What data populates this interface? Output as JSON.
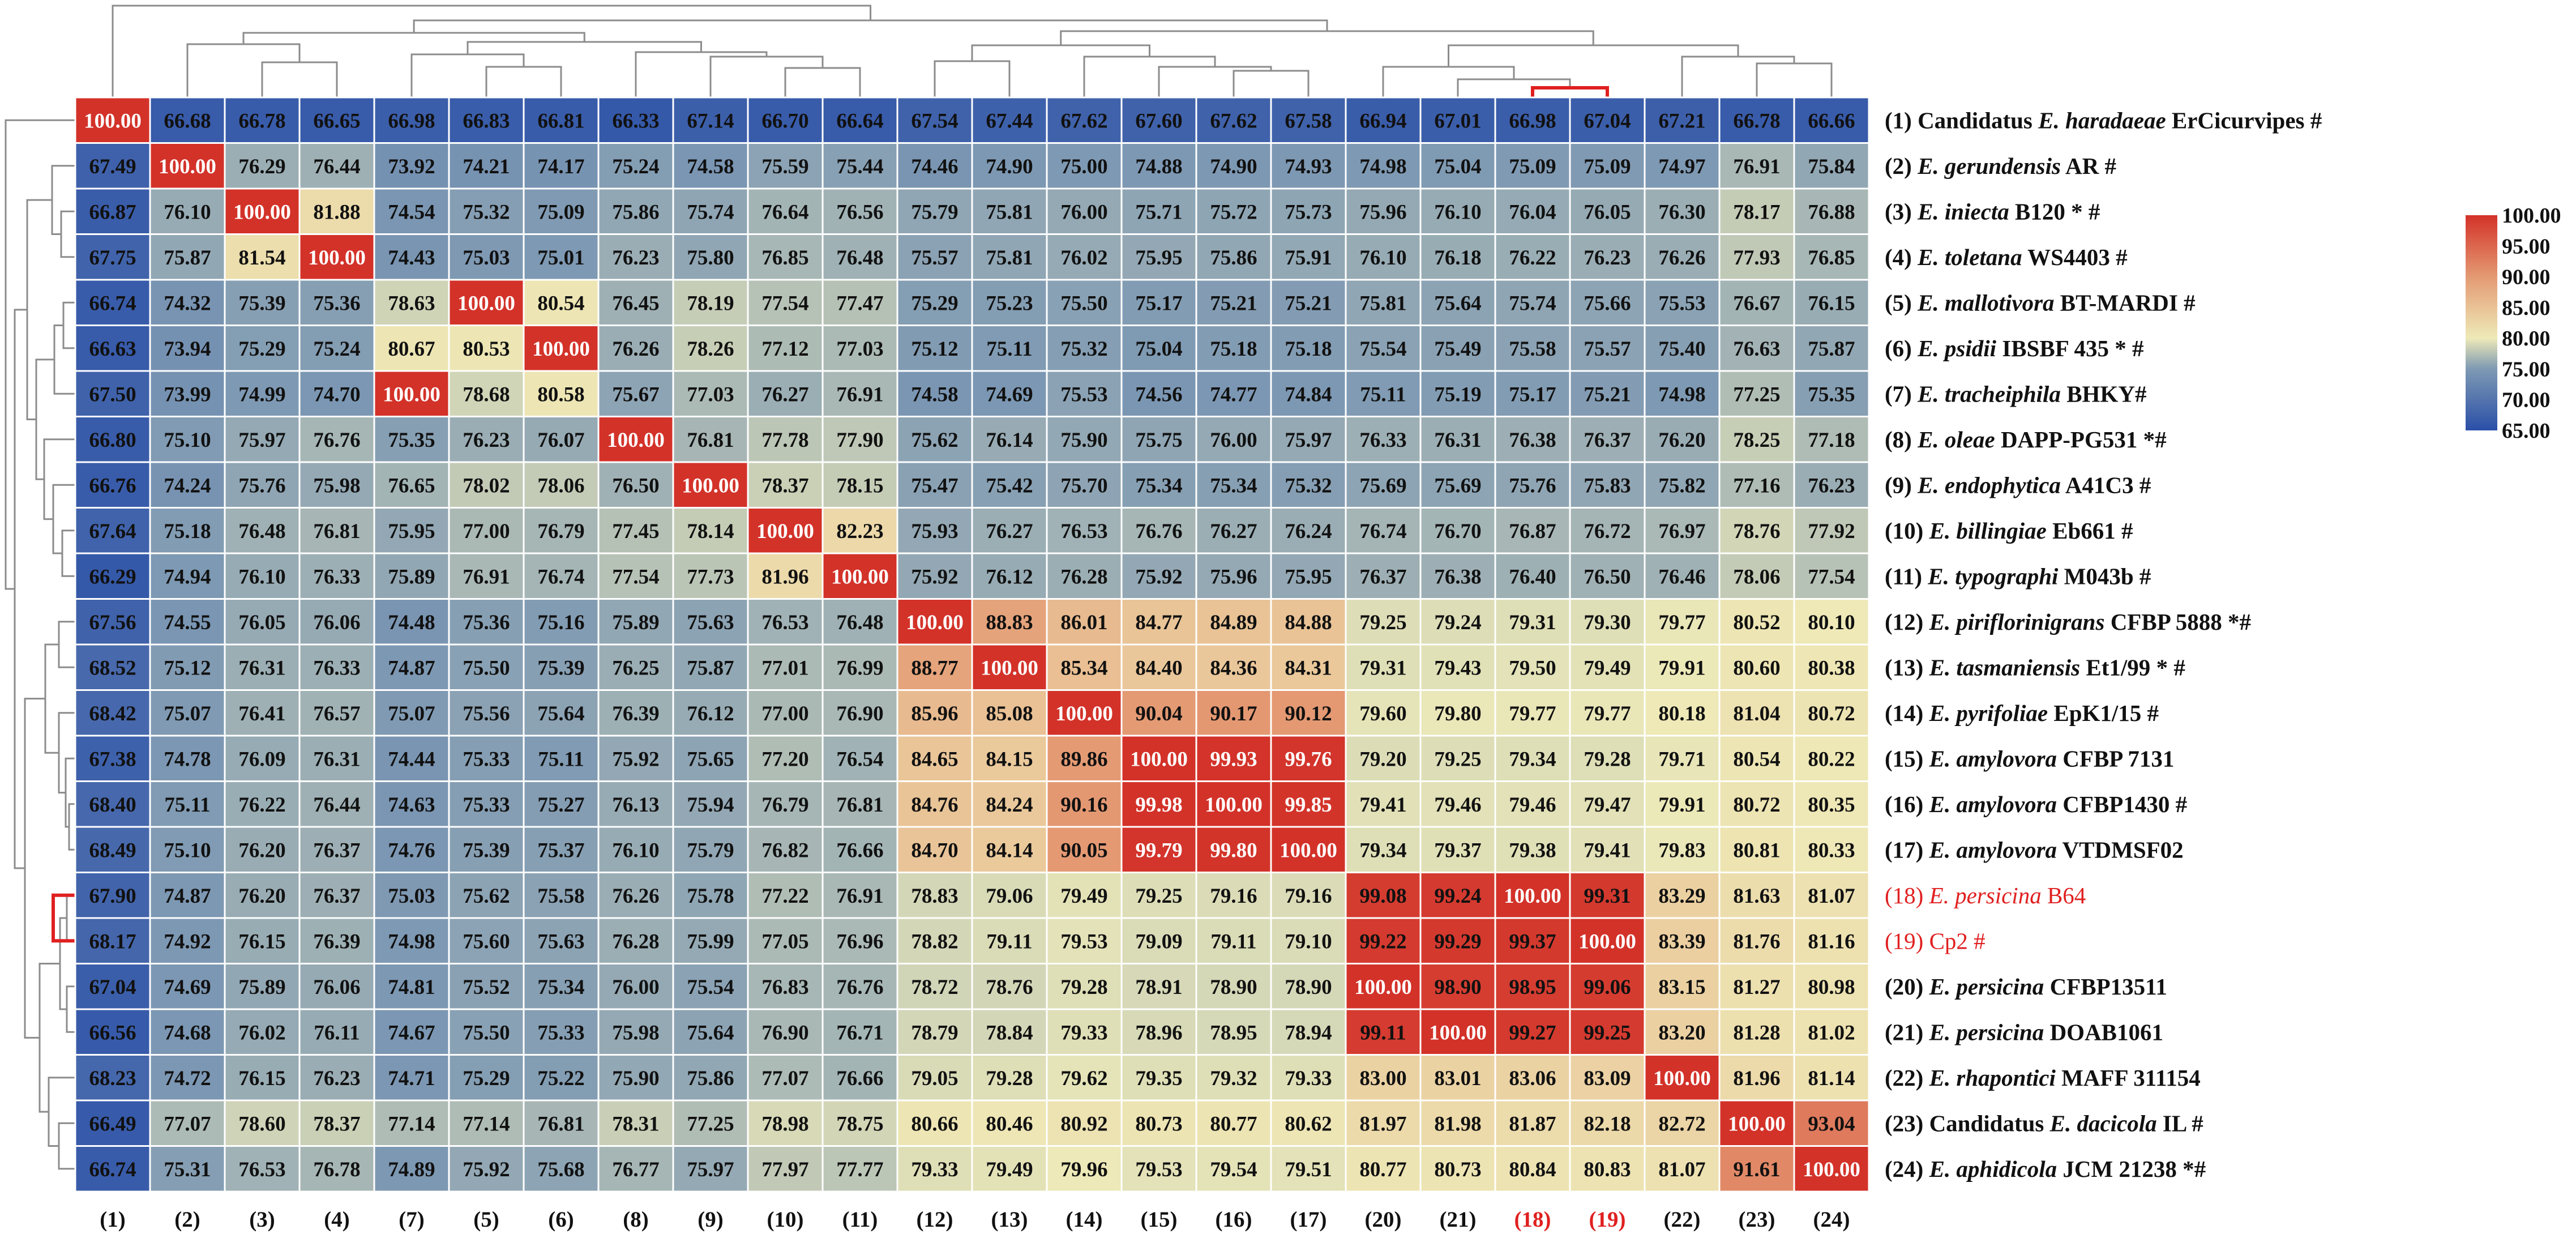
{
  "chart_data": {
    "type": "heatmap",
    "column_order": [
      1,
      2,
      3,
      4,
      7,
      5,
      6,
      8,
      9,
      10,
      11,
      12,
      13,
      14,
      15,
      16,
      17,
      20,
      21,
      18,
      19,
      22,
      23,
      24
    ],
    "col_labels": [
      "(1)",
      "(2)",
      "(3)",
      "(4)",
      "(7)",
      "(5)",
      "(6)",
      "(8)",
      "(9)",
      "(10)",
      "(11)",
      "(12)",
      "(13)",
      "(14)",
      "(15)",
      "(16)",
      "(17)",
      "(20)",
      "(21)",
      "(18)",
      "(19)",
      "(22)",
      "(23)",
      "(24)"
    ],
    "highlight_color": "#e02020",
    "highlight_columns": [
      "(18)",
      "(19)"
    ],
    "rows": [
      {
        "num": "(1)",
        "pre": "Candidatus ",
        "genus": "E. ",
        "species": "haradaeae",
        "strain": " ErCicurvipes",
        "mark": " #",
        "red": false
      },
      {
        "num": "(2)",
        "pre": "",
        "genus": "E. ",
        "species": "gerundensis",
        "strain": " AR",
        "mark": " #",
        "red": false
      },
      {
        "num": "(3)",
        "pre": "",
        "genus": "E. ",
        "species": "iniecta",
        "strain": " B120",
        "mark": " * #",
        "red": false
      },
      {
        "num": "(4)",
        "pre": "",
        "genus": "E. ",
        "species": "toletana",
        "strain": " WS4403",
        "mark": " #",
        "red": false
      },
      {
        "num": "(5)",
        "pre": "",
        "genus": "E. ",
        "species": "mallotivora",
        "strain": " BT-MARDI",
        "mark": " #",
        "red": false
      },
      {
        "num": "(6)",
        "pre": "",
        "genus": "E. ",
        "species": "psidii",
        "strain": " IBSBF 435",
        "mark": " * #",
        "red": false
      },
      {
        "num": "(7)",
        "pre": "",
        "genus": "E. ",
        "species": "tracheiphila",
        "strain": " BHKY",
        "mark": "#",
        "red": false
      },
      {
        "num": "(8)",
        "pre": "",
        "genus": "E. ",
        "species": "oleae",
        "strain": " DAPP-PG531",
        "mark": " *#",
        "red": false
      },
      {
        "num": "(9)",
        "pre": "",
        "genus": "E. ",
        "species": "endophytica",
        "strain": " A41C3",
        "mark": " #",
        "red": false
      },
      {
        "num": "(10)",
        "pre": "",
        "genus": "E. ",
        "species": "billingiae",
        "strain": " Eb661",
        "mark": " #",
        "red": false
      },
      {
        "num": "(11)",
        "pre": "",
        "genus": "E. ",
        "species": "typographi",
        "strain": " M043b",
        "mark": " #",
        "red": false
      },
      {
        "num": "(12)",
        "pre": "",
        "genus": "E. ",
        "species": "piriflorinigrans",
        "strain": " CFBP 5888",
        "mark": " *#",
        "red": false
      },
      {
        "num": "(13)",
        "pre": "",
        "genus": "E. ",
        "species": "tasmaniensis",
        "strain": " Et1/99",
        "mark": " * #",
        "red": false
      },
      {
        "num": "(14)",
        "pre": "",
        "genus": "E. ",
        "species": "pyrifoliae",
        "strain": " EpK1/15",
        "mark": " #",
        "red": false
      },
      {
        "num": "(15)",
        "pre": "",
        "genus": "E. ",
        "species": "amylovora",
        "strain": " CFBP 7131",
        "mark": "",
        "red": false
      },
      {
        "num": "(16)",
        "pre": "",
        "genus": "E. ",
        "species": "amylovora",
        "strain": " CFBP1430",
        "mark": " #",
        "red": false
      },
      {
        "num": "(17)",
        "pre": "",
        "genus": "E. ",
        "species": "amylovora",
        "strain": " VTDMSF02",
        "mark": "",
        "red": false
      },
      {
        "num": "(18)",
        "pre": "",
        "genus": "E. ",
        "species": "persicina",
        "strain": " B64",
        "mark": "",
        "red": true
      },
      {
        "num": "(19)",
        "pre": "",
        "genus": "",
        "species": "",
        "strain": "Cp2",
        "mark": " #",
        "red": true
      },
      {
        "num": "(20)",
        "pre": "",
        "genus": "E. ",
        "species": "persicina",
        "strain": " CFBP13511",
        "mark": "",
        "red": false
      },
      {
        "num": "(21)",
        "pre": "",
        "genus": "E. ",
        "species": "persicina",
        "strain": " DOAB1061",
        "mark": "",
        "red": false
      },
      {
        "num": "(22)",
        "pre": "",
        "genus": "E. ",
        "species": "rhapontici",
        "strain": " MAFF 311154",
        "mark": "",
        "red": false
      },
      {
        "num": "(23)",
        "pre": "Candidatus ",
        "genus": "E. ",
        "species": "dacicola",
        "strain": " IL",
        "mark": " #",
        "red": false
      },
      {
        "num": "(24)",
        "pre": "",
        "genus": "E. ",
        "species": "aphidicola",
        "strain": " JCM 21238",
        "mark": " *#",
        "red": false
      }
    ],
    "values": [
      [
        "100.00",
        "66.68",
        "66.78",
        "66.65",
        "66.98",
        "66.83",
        "66.81",
        "66.33",
        "67.14",
        "66.70",
        "66.64",
        "67.54",
        "67.44",
        "67.62",
        "67.60",
        "67.62",
        "67.58",
        "66.94",
        "67.01",
        "66.98",
        "67.04",
        "67.21",
        "66.78",
        "66.66"
      ],
      [
        "67.49",
        "100.00",
        "76.29",
        "76.44",
        "73.92",
        "74.21",
        "74.17",
        "75.24",
        "74.58",
        "75.59",
        "75.44",
        "74.46",
        "74.90",
        "75.00",
        "74.88",
        "74.90",
        "74.93",
        "74.98",
        "75.04",
        "75.09",
        "75.09",
        "74.97",
        "76.91",
        "75.84"
      ],
      [
        "66.87",
        "76.10",
        "100.00",
        "81.88",
        "74.54",
        "75.32",
        "75.09",
        "75.86",
        "75.74",
        "76.64",
        "76.56",
        "75.79",
        "75.81",
        "76.00",
        "75.71",
        "75.72",
        "75.73",
        "75.96",
        "76.10",
        "76.04",
        "76.05",
        "76.30",
        "78.17",
        "76.88"
      ],
      [
        "67.75",
        "75.87",
        "81.54",
        "100.00",
        "74.43",
        "75.03",
        "75.01",
        "76.23",
        "75.80",
        "76.85",
        "76.48",
        "75.57",
        "75.81",
        "76.02",
        "75.95",
        "75.86",
        "75.91",
        "76.10",
        "76.18",
        "76.22",
        "76.23",
        "76.26",
        "77.93",
        "76.85"
      ],
      [
        "66.74",
        "74.32",
        "75.39",
        "75.36",
        "78.63",
        "100.00",
        "80.54",
        "76.45",
        "78.19",
        "77.54",
        "77.47",
        "75.29",
        "75.23",
        "75.50",
        "75.17",
        "75.21",
        "75.21",
        "75.81",
        "75.64",
        "75.74",
        "75.66",
        "75.53",
        "76.67",
        "76.15"
      ],
      [
        "66.63",
        "73.94",
        "75.29",
        "75.24",
        "80.67",
        "80.53",
        "100.00",
        "76.26",
        "78.26",
        "77.12",
        "77.03",
        "75.12",
        "75.11",
        "75.32",
        "75.04",
        "75.18",
        "75.18",
        "75.54",
        "75.49",
        "75.58",
        "75.57",
        "75.40",
        "76.63",
        "75.87"
      ],
      [
        "67.50",
        "73.99",
        "74.99",
        "74.70",
        "100.00",
        "78.68",
        "80.58",
        "75.67",
        "77.03",
        "76.27",
        "76.91",
        "74.58",
        "74.69",
        "75.53",
        "74.56",
        "74.77",
        "74.84",
        "75.11",
        "75.19",
        "75.17",
        "75.21",
        "74.98",
        "77.25",
        "75.35"
      ],
      [
        "66.80",
        "75.10",
        "75.97",
        "76.76",
        "75.35",
        "76.23",
        "76.07",
        "100.00",
        "76.81",
        "77.78",
        "77.90",
        "75.62",
        "76.14",
        "75.90",
        "75.75",
        "76.00",
        "75.97",
        "76.33",
        "76.31",
        "76.38",
        "76.37",
        "76.20",
        "78.25",
        "77.18"
      ],
      [
        "66.76",
        "74.24",
        "75.76",
        "75.98",
        "76.65",
        "78.02",
        "78.06",
        "76.50",
        "100.00",
        "78.37",
        "78.15",
        "75.47",
        "75.42",
        "75.70",
        "75.34",
        "75.34",
        "75.32",
        "75.69",
        "75.69",
        "75.76",
        "75.83",
        "75.82",
        "77.16",
        "76.23"
      ],
      [
        "67.64",
        "75.18",
        "76.48",
        "76.81",
        "75.95",
        "77.00",
        "76.79",
        "77.45",
        "78.14",
        "100.00",
        "82.23",
        "75.93",
        "76.27",
        "76.53",
        "76.76",
        "76.27",
        "76.24",
        "76.74",
        "76.70",
        "76.87",
        "76.72",
        "76.97",
        "78.76",
        "77.92"
      ],
      [
        "66.29",
        "74.94",
        "76.10",
        "76.33",
        "75.89",
        "76.91",
        "76.74",
        "77.54",
        "77.73",
        "81.96",
        "100.00",
        "75.92",
        "76.12",
        "76.28",
        "75.92",
        "75.96",
        "75.95",
        "76.37",
        "76.38",
        "76.40",
        "76.50",
        "76.46",
        "78.06",
        "77.54"
      ],
      [
        "67.56",
        "74.55",
        "76.05",
        "76.06",
        "74.48",
        "75.36",
        "75.16",
        "75.89",
        "75.63",
        "76.53",
        "76.48",
        "100.00",
        "88.83",
        "86.01",
        "84.77",
        "84.89",
        "84.88",
        "79.25",
        "79.24",
        "79.31",
        "79.30",
        "79.77",
        "80.52",
        "80.10"
      ],
      [
        "68.52",
        "75.12",
        "76.31",
        "76.33",
        "74.87",
        "75.50",
        "75.39",
        "76.25",
        "75.87",
        "77.01",
        "76.99",
        "88.77",
        "100.00",
        "85.34",
        "84.40",
        "84.36",
        "84.31",
        "79.31",
        "79.43",
        "79.50",
        "79.49",
        "79.91",
        "80.60",
        "80.38"
      ],
      [
        "68.42",
        "75.07",
        "76.41",
        "76.57",
        "75.07",
        "75.56",
        "75.64",
        "76.39",
        "76.12",
        "77.00",
        "76.90",
        "85.96",
        "85.08",
        "100.00",
        "90.04",
        "90.17",
        "90.12",
        "79.60",
        "79.80",
        "79.77",
        "79.77",
        "80.18",
        "81.04",
        "80.72"
      ],
      [
        "67.38",
        "74.78",
        "76.09",
        "76.31",
        "74.44",
        "75.33",
        "75.11",
        "75.92",
        "75.65",
        "77.20",
        "76.54",
        "84.65",
        "84.15",
        "89.86",
        "100.00",
        "99.93",
        "99.76",
        "79.20",
        "79.25",
        "79.34",
        "79.28",
        "79.71",
        "80.54",
        "80.22"
      ],
      [
        "68.40",
        "75.11",
        "76.22",
        "76.44",
        "74.63",
        "75.33",
        "75.27",
        "76.13",
        "75.94",
        "76.79",
        "76.81",
        "84.76",
        "84.24",
        "90.16",
        "99.98",
        "100.00",
        "99.85",
        "79.41",
        "79.46",
        "79.46",
        "79.47",
        "79.91",
        "80.72",
        "80.35"
      ],
      [
        "68.49",
        "75.10",
        "76.20",
        "76.37",
        "74.76",
        "75.39",
        "75.37",
        "76.10",
        "75.79",
        "76.82",
        "76.66",
        "84.70",
        "84.14",
        "90.05",
        "99.79",
        "99.80",
        "100.00",
        "79.34",
        "79.37",
        "79.38",
        "79.41",
        "79.83",
        "80.81",
        "80.33"
      ],
      [
        "67.90",
        "74.87",
        "76.20",
        "76.37",
        "75.03",
        "75.62",
        "75.58",
        "76.26",
        "75.78",
        "77.22",
        "76.91",
        "78.83",
        "79.06",
        "79.49",
        "79.25",
        "79.16",
        "79.16",
        "99.08",
        "99.24",
        "100.00",
        "99.31",
        "83.29",
        "81.63",
        "81.07"
      ],
      [
        "68.17",
        "74.92",
        "76.15",
        "76.39",
        "74.98",
        "75.60",
        "75.63",
        "76.28",
        "75.99",
        "77.05",
        "76.96",
        "78.82",
        "79.11",
        "79.53",
        "79.09",
        "79.11",
        "79.10",
        "99.22",
        "99.29",
        "99.37",
        "100.00",
        "83.39",
        "81.76",
        "81.16"
      ],
      [
        "67.04",
        "74.69",
        "75.89",
        "76.06",
        "74.81",
        "75.52",
        "75.34",
        "76.00",
        "75.54",
        "76.83",
        "76.76",
        "78.72",
        "78.76",
        "79.28",
        "78.91",
        "78.90",
        "78.90",
        "100.00",
        "98.90",
        "98.95",
        "99.06",
        "83.15",
        "81.27",
        "80.98"
      ],
      [
        "66.56",
        "74.68",
        "76.02",
        "76.11",
        "74.67",
        "75.50",
        "75.33",
        "75.98",
        "75.64",
        "76.90",
        "76.71",
        "78.79",
        "78.84",
        "79.33",
        "78.96",
        "78.95",
        "78.94",
        "99.11",
        "100.00",
        "99.27",
        "99.25",
        "83.20",
        "81.28",
        "81.02"
      ],
      [
        "68.23",
        "74.72",
        "76.15",
        "76.23",
        "74.71",
        "75.29",
        "75.22",
        "75.90",
        "75.86",
        "77.07",
        "76.66",
        "79.05",
        "79.28",
        "79.62",
        "79.35",
        "79.32",
        "79.33",
        "83.00",
        "83.01",
        "83.06",
        "83.09",
        "100.00",
        "81.96",
        "81.14"
      ],
      [
        "66.49",
        "77.07",
        "78.60",
        "78.37",
        "77.14",
        "77.14",
        "76.81",
        "78.31",
        "77.25",
        "78.98",
        "78.75",
        "80.66",
        "80.46",
        "80.92",
        "80.73",
        "80.77",
        "80.62",
        "81.97",
        "81.98",
        "81.87",
        "82.18",
        "82.72",
        "100.00",
        "93.04"
      ],
      [
        "66.74",
        "75.31",
        "76.53",
        "76.78",
        "74.89",
        "75.92",
        "75.68",
        "76.77",
        "75.97",
        "77.97",
        "77.77",
        "79.33",
        "79.49",
        "79.96",
        "79.53",
        "79.54",
        "79.51",
        "80.77",
        "80.73",
        "80.84",
        "80.83",
        "81.07",
        "91.61",
        "100.00"
      ]
    ],
    "color_scale": {
      "min": 65,
      "max": 100,
      "stops": [
        {
          "value": 65,
          "color": "#2a4fa8"
        },
        {
          "value": 75,
          "color": "#7e99b3"
        },
        {
          "value": 80,
          "color": "#eeeab8"
        },
        {
          "value": 90,
          "color": "#e49a73"
        },
        {
          "value": 100,
          "color": "#d33229"
        }
      ],
      "ticks": [
        "100.00",
        "95.00",
        "90.00",
        "85.00",
        "80.00",
        "75.00",
        "70.00",
        "65.00"
      ]
    },
    "grid": false,
    "legend_position": "right",
    "dendrograms": [
      "top",
      "left"
    ]
  }
}
